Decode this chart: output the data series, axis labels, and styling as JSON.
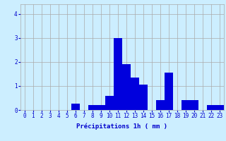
{
  "hours": [
    0,
    1,
    2,
    3,
    4,
    5,
    6,
    7,
    8,
    9,
    10,
    11,
    12,
    13,
    14,
    15,
    16,
    17,
    18,
    19,
    20,
    21,
    22,
    23
  ],
  "values": [
    0,
    0,
    0,
    0,
    0,
    0,
    0.25,
    0,
    0.2,
    0.2,
    0.6,
    3.0,
    1.9,
    1.35,
    1.05,
    0,
    0.4,
    1.55,
    0,
    0.4,
    0.4,
    0,
    0.2,
    0.2
  ],
  "bar_color": "#0000dd",
  "background_color": "#cceeff",
  "grid_color": "#aaaaaa",
  "axis_color": "#0000cc",
  "xlabel": "Précipitations 1h ( mm )",
  "ylim": [
    0,
    4.4
  ],
  "xlim": [
    -0.5,
    23.5
  ],
  "yticks": [
    0,
    1,
    2,
    3,
    4
  ],
  "xticks": [
    0,
    1,
    2,
    3,
    4,
    5,
    6,
    7,
    8,
    9,
    10,
    11,
    12,
    13,
    14,
    15,
    16,
    17,
    18,
    19,
    20,
    21,
    22,
    23
  ],
  "label_fontsize": 6.5,
  "tick_fontsize": 5.5
}
